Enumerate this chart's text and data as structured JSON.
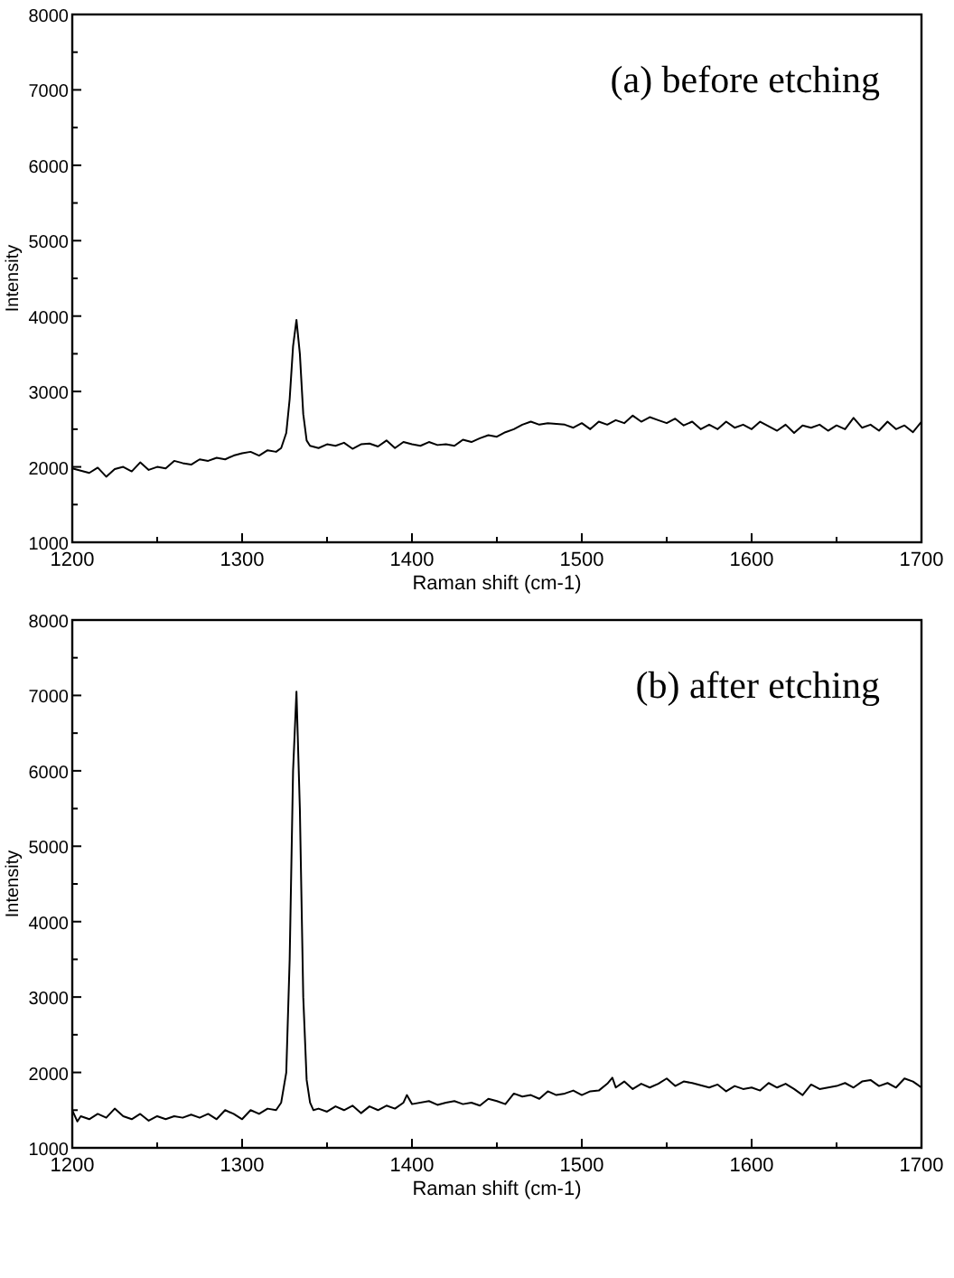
{
  "chart_data": [
    {
      "type": "line",
      "title": "(a) before etching",
      "xlabel": "Raman shift (cm-1)",
      "ylabel": "Intensity",
      "xlim": [
        1200,
        1700
      ],
      "ylim": [
        1000,
        8000
      ],
      "xticks": [
        1200,
        {
          "value": 1250,
          "label": null
        },
        1300,
        {
          "value": 1350,
          "label": null
        },
        1400,
        {
          "value": 1450,
          "label": null
        },
        1500,
        {
          "value": 1550,
          "label": null
        },
        1600,
        {
          "value": 1650,
          "label": null
        },
        1700
      ],
      "yticks": [
        1000,
        {
          "value": 1500,
          "label": null
        },
        2000,
        {
          "value": 2500,
          "label": null
        },
        3000,
        {
          "value": 3500,
          "label": null
        },
        4000,
        {
          "value": 4500,
          "label": null
        },
        5000,
        {
          "value": 5500,
          "label": null
        },
        6000,
        {
          "value": 6500,
          "label": null
        },
        7000,
        {
          "value": 7500,
          "label": null
        },
        8000
      ],
      "grid": false,
      "marker": "none",
      "line_style": "solid",
      "x": [
        1200,
        1205,
        1210,
        1215,
        1220,
        1225,
        1230,
        1235,
        1240,
        1245,
        1250,
        1255,
        1260,
        1265,
        1270,
        1275,
        1280,
        1285,
        1290,
        1295,
        1300,
        1305,
        1310,
        1315,
        1320,
        1323,
        1326,
        1328,
        1330,
        1332,
        1334,
        1336,
        1338,
        1340,
        1345,
        1350,
        1355,
        1360,
        1365,
        1370,
        1375,
        1380,
        1385,
        1390,
        1395,
        1400,
        1405,
        1410,
        1415,
        1420,
        1425,
        1430,
        1435,
        1440,
        1445,
        1450,
        1455,
        1460,
        1465,
        1470,
        1475,
        1480,
        1490,
        1495,
        1500,
        1505,
        1510,
        1515,
        1520,
        1525,
        1530,
        1535,
        1540,
        1545,
        1550,
        1555,
        1560,
        1565,
        1570,
        1575,
        1580,
        1585,
        1590,
        1595,
        1600,
        1605,
        1610,
        1615,
        1620,
        1625,
        1630,
        1635,
        1640,
        1645,
        1650,
        1655,
        1660,
        1665,
        1670,
        1675,
        1680,
        1685,
        1690,
        1695,
        1700
      ],
      "series": [
        {
          "color": "#000000",
          "values": [
            1980,
            1950,
            1920,
            1990,
            1870,
            1970,
            2000,
            1940,
            2060,
            1960,
            2000,
            1980,
            2080,
            2050,
            2030,
            2100,
            2080,
            2120,
            2100,
            2150,
            2180,
            2200,
            2150,
            2220,
            2200,
            2250,
            2450,
            2900,
            3600,
            3950,
            3500,
            2700,
            2350,
            2280,
            2250,
            2300,
            2280,
            2320,
            2240,
            2300,
            2310,
            2270,
            2350,
            2250,
            2330,
            2300,
            2280,
            2330,
            2290,
            2300,
            2280,
            2360,
            2330,
            2380,
            2420,
            2400,
            2460,
            2500,
            2560,
            2600,
            2560,
            2580,
            2560,
            2520,
            2580,
            2500,
            2600,
            2560,
            2620,
            2580,
            2680,
            2600,
            2660,
            2620,
            2580,
            2640,
            2550,
            2600,
            2500,
            2560,
            2500,
            2600,
            2520,
            2560,
            2500,
            2600,
            2540,
            2480,
            2560,
            2450,
            2550,
            2520,
            2560,
            2480,
            2550,
            2500,
            2650,
            2520,
            2560,
            2480,
            2600,
            2500,
            2550,
            2460,
            2600
          ]
        }
      ]
    },
    {
      "type": "line",
      "title": "(b) after etching",
      "xlabel": "Raman shift (cm-1)",
      "ylabel": "Intensity",
      "xlim": [
        1200,
        1700
      ],
      "ylim": [
        1000,
        8000
      ],
      "xticks": [
        1200,
        {
          "value": 1250,
          "label": null
        },
        1300,
        {
          "value": 1350,
          "label": null
        },
        1400,
        {
          "value": 1450,
          "label": null
        },
        1500,
        {
          "value": 1550,
          "label": null
        },
        1600,
        {
          "value": 1650,
          "label": null
        },
        1700
      ],
      "yticks": [
        1000,
        {
          "value": 1500,
          "label": null
        },
        2000,
        {
          "value": 2500,
          "label": null
        },
        3000,
        {
          "value": 3500,
          "label": null
        },
        4000,
        {
          "value": 4500,
          "label": null
        },
        5000,
        {
          "value": 5500,
          "label": null
        },
        6000,
        {
          "value": 6500,
          "label": null
        },
        7000,
        {
          "value": 7500,
          "label": null
        },
        8000
      ],
      "grid": false,
      "marker": "none",
      "line_style": "solid",
      "x": [
        1200,
        1203,
        1205,
        1210,
        1215,
        1220,
        1225,
        1230,
        1235,
        1240,
        1245,
        1250,
        1255,
        1260,
        1265,
        1270,
        1275,
        1280,
        1285,
        1290,
        1295,
        1300,
        1305,
        1310,
        1315,
        1320,
        1323,
        1326,
        1328,
        1330,
        1332,
        1334,
        1336,
        1338,
        1340,
        1342,
        1345,
        1350,
        1355,
        1360,
        1365,
        1370,
        1375,
        1380,
        1385,
        1390,
        1395,
        1397,
        1400,
        1410,
        1415,
        1420,
        1425,
        1430,
        1435,
        1440,
        1445,
        1450,
        1455,
        1460,
        1465,
        1470,
        1475,
        1480,
        1485,
        1490,
        1495,
        1500,
        1505,
        1510,
        1515,
        1518,
        1520,
        1525,
        1530,
        1535,
        1540,
        1545,
        1550,
        1555,
        1560,
        1565,
        1570,
        1575,
        1580,
        1585,
        1590,
        1595,
        1600,
        1605,
        1610,
        1615,
        1620,
        1625,
        1630,
        1635,
        1640,
        1645,
        1650,
        1655,
        1660,
        1665,
        1670,
        1675,
        1680,
        1685,
        1690,
        1695,
        1700
      ],
      "series": [
        {
          "color": "#000000",
          "values": [
            1500,
            1350,
            1420,
            1380,
            1450,
            1400,
            1520,
            1420,
            1380,
            1450,
            1360,
            1420,
            1380,
            1420,
            1400,
            1440,
            1400,
            1450,
            1380,
            1500,
            1450,
            1380,
            1500,
            1450,
            1520,
            1500,
            1600,
            2000,
            3500,
            6000,
            7050,
            5500,
            3000,
            1900,
            1600,
            1500,
            1520,
            1480,
            1550,
            1500,
            1560,
            1460,
            1550,
            1500,
            1560,
            1520,
            1600,
            1700,
            1580,
            1620,
            1570,
            1600,
            1620,
            1580,
            1600,
            1560,
            1650,
            1620,
            1580,
            1720,
            1680,
            1700,
            1650,
            1750,
            1700,
            1720,
            1760,
            1700,
            1750,
            1760,
            1850,
            1930,
            1800,
            1880,
            1780,
            1850,
            1800,
            1850,
            1920,
            1820,
            1880,
            1860,
            1830,
            1800,
            1840,
            1750,
            1820,
            1780,
            1800,
            1760,
            1860,
            1800,
            1850,
            1780,
            1700,
            1840,
            1780,
            1800,
            1820,
            1860,
            1800,
            1880,
            1900,
            1820,
            1860,
            1800,
            1920,
            1880,
            1800
          ]
        }
      ]
    }
  ]
}
